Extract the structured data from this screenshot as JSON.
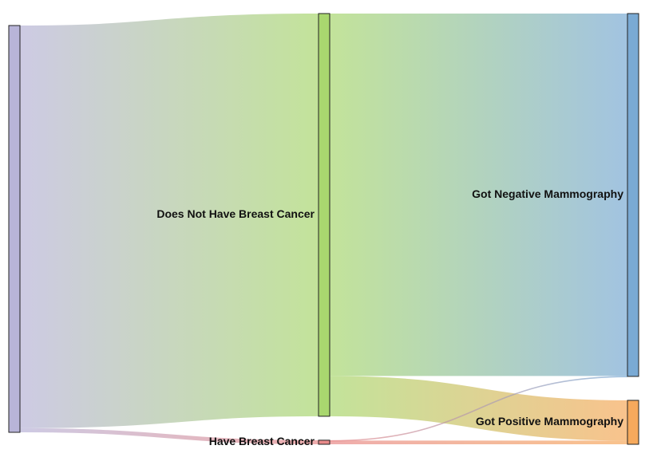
{
  "chart_data": {
    "type": "sankey",
    "nodes": [
      {
        "id": "root",
        "label": "",
        "color": "#b8b4d8"
      },
      {
        "id": "no_cancer",
        "label": "Does Not Have Breast Cancer",
        "color": "#a9d76f"
      },
      {
        "id": "cancer",
        "label": "Have Breast Cancer",
        "color": "#e88a8a"
      },
      {
        "id": "negative",
        "label": "Got Negative Mammography",
        "color": "#7aaad4"
      },
      {
        "id": "positive",
        "label": "Got Positive Mammography",
        "color": "#f6a95c"
      }
    ],
    "links": [
      {
        "source": "root",
        "target": "no_cancer",
        "value": 99
      },
      {
        "source": "root",
        "target": "cancer",
        "value": 1
      },
      {
        "source": "no_cancer",
        "target": "negative",
        "value": 89.1
      },
      {
        "source": "no_cancer",
        "target": "positive",
        "value": 9.9
      },
      {
        "source": "cancer",
        "target": "negative",
        "value": 0.1
      },
      {
        "source": "cancer",
        "target": "positive",
        "value": 0.9
      }
    ]
  }
}
